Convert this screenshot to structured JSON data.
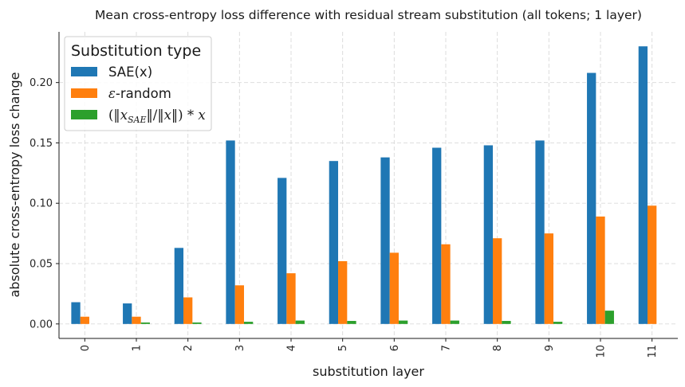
{
  "chart_data": {
    "type": "bar",
    "title": "Mean cross-entropy loss difference with residual stream substitution (all tokens; 1 layer)",
    "xlabel": "substitution layer",
    "ylabel": "absolute cross-entropy loss change",
    "categories": [
      "0",
      "1",
      "2",
      "3",
      "4",
      "5",
      "6",
      "7",
      "8",
      "9",
      "10",
      "11"
    ],
    "ylim": [
      -0.012,
      0.242
    ],
    "yticks": [
      0.0,
      0.05,
      0.1,
      0.15,
      0.2
    ],
    "ytick_labels": [
      "0.00",
      "0.05",
      "0.10",
      "0.15",
      "0.20"
    ],
    "grid": true,
    "legend": {
      "title": "Substitution type",
      "placement": "top-left"
    },
    "series": [
      {
        "name": "SAE(x)",
        "color": "#1f77b4",
        "values": [
          0.018,
          0.017,
          0.063,
          0.152,
          0.121,
          0.135,
          0.138,
          0.146,
          0.148,
          0.152,
          0.208,
          0.23
        ]
      },
      {
        "name": "ε-random",
        "name_parts": {
          "symbol": "ε",
          "suffix": "-random"
        },
        "color": "#ff7f0e",
        "values": [
          0.006,
          0.006,
          0.022,
          0.032,
          0.042,
          0.052,
          0.059,
          0.066,
          0.071,
          0.075,
          0.089,
          0.098
        ]
      },
      {
        "name": "(‖x_SAE‖/‖x‖) * x",
        "name_parts": {
          "open": "(‖",
          "base": "x",
          "sub": "SAE",
          "mid": "‖/‖",
          "var": "x",
          "close": "‖) * ",
          "tail": "x"
        },
        "color": "#2ca02c",
        "values": [
          0.0,
          0.0012,
          0.0012,
          0.0018,
          0.0028,
          0.0025,
          0.0028,
          0.0028,
          0.0025,
          0.0018,
          0.011,
          0.0
        ]
      }
    ]
  }
}
